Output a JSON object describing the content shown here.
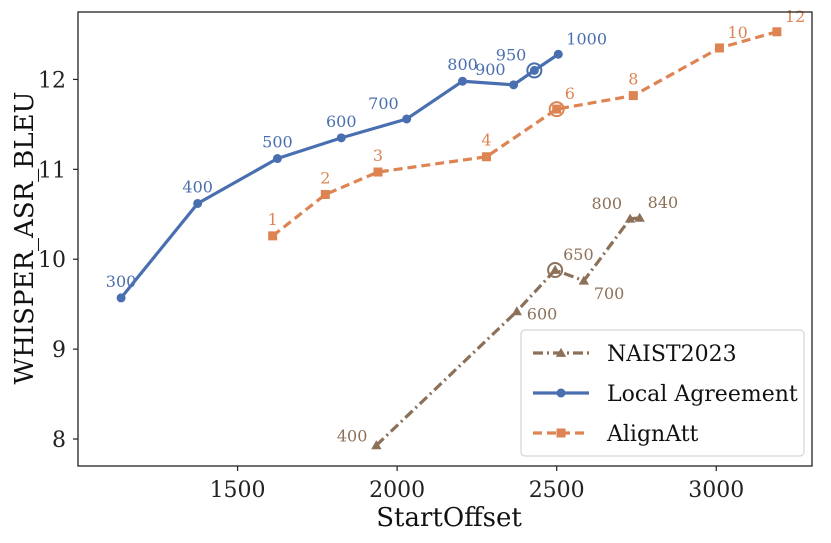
{
  "chart_data": {
    "type": "line",
    "title": "",
    "xlabel": "StartOffset",
    "ylabel": "WHISPER_ASR_BLEU",
    "xlim": [
      1000,
      3300
    ],
    "ylim": [
      7.7,
      12.75
    ],
    "xticks": [
      1500,
      2000,
      2500,
      3000
    ],
    "yticks": [
      8,
      9,
      10,
      11,
      12
    ],
    "xtick_labels": [
      "1500",
      "2000",
      "2500",
      "3000"
    ],
    "ytick_labels": [
      "8",
      "9",
      "10",
      "11",
      "12"
    ],
    "grid": false,
    "legend_position": "bottom-right",
    "series": [
      {
        "name": "NAIST2023",
        "color": "#8c7058",
        "line_style": "dashdot",
        "marker": "triangle",
        "highlight_label": "650",
        "points": [
          {
            "x": 1935,
            "y": 7.93,
            "label": "400",
            "label_pos": "left"
          },
          {
            "x": 2375,
            "y": 9.42,
            "label": "600",
            "label_pos": "right"
          },
          {
            "x": 2495,
            "y": 9.88,
            "label": "650",
            "label_pos": "upper-right"
          },
          {
            "x": 2585,
            "y": 9.76,
            "label": "700",
            "label_pos": "lower-right"
          },
          {
            "x": 2730,
            "y": 10.45,
            "label": "800",
            "label_pos": "upper-left"
          },
          {
            "x": 2760,
            "y": 10.46,
            "label": "840",
            "label_pos": "upper-right"
          }
        ]
      },
      {
        "name": "Local Agreement",
        "color": "#4a6fb0",
        "line_style": "solid",
        "marker": "circle",
        "highlight_label": "950",
        "points": [
          {
            "x": 1135,
            "y": 9.57,
            "label": "300",
            "label_pos": "above"
          },
          {
            "x": 1375,
            "y": 10.62,
            "label": "400",
            "label_pos": "above"
          },
          {
            "x": 1625,
            "y": 11.12,
            "label": "500",
            "label_pos": "above"
          },
          {
            "x": 1825,
            "y": 11.35,
            "label": "600",
            "label_pos": "above"
          },
          {
            "x": 2030,
            "y": 11.56,
            "label": "700",
            "label_pos": "upper-left"
          },
          {
            "x": 2205,
            "y": 11.98,
            "label": "800",
            "label_pos": "above"
          },
          {
            "x": 2365,
            "y": 11.94,
            "label": "900",
            "label_pos": "upper-left"
          },
          {
            "x": 2430,
            "y": 12.1,
            "label": "950",
            "label_pos": "upper-left"
          },
          {
            "x": 2505,
            "y": 12.28,
            "label": "1000",
            "label_pos": "upper-right"
          }
        ]
      },
      {
        "name": "AlignAtt",
        "color": "#dd8452",
        "line_style": "dashed",
        "marker": "square",
        "highlight_label": "6",
        "points": [
          {
            "x": 1610,
            "y": 10.26,
            "label": "1",
            "label_pos": "above"
          },
          {
            "x": 1775,
            "y": 10.72,
            "label": "2",
            "label_pos": "above"
          },
          {
            "x": 1940,
            "y": 10.97,
            "label": "3",
            "label_pos": "above"
          },
          {
            "x": 2280,
            "y": 11.14,
            "label": "4",
            "label_pos": "above"
          },
          {
            "x": 2500,
            "y": 11.67,
            "label": "6",
            "label_pos": "upper-right"
          },
          {
            "x": 2740,
            "y": 11.82,
            "label": "8",
            "label_pos": "above"
          },
          {
            "x": 3010,
            "y": 12.35,
            "label": "10",
            "label_pos": "upper-right"
          },
          {
            "x": 3190,
            "y": 12.53,
            "label": "12",
            "label_pos": "upper-right"
          }
        ]
      }
    ]
  }
}
